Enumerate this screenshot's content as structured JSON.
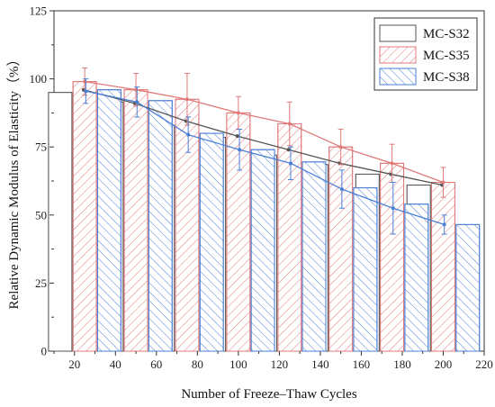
{
  "chart_data": {
    "type": "bar",
    "xlabel": "Number of Freeze–Thaw Cycles",
    "ylabel": "Relative Dynamic Modulus of Elasticity（%）",
    "x": [
      25,
      50,
      75,
      100,
      125,
      150,
      175,
      200
    ],
    "xlim": [
      10,
      220
    ],
    "ylim": [
      0,
      125
    ],
    "xticks": [
      "20",
      "40",
      "60",
      "80",
      "100",
      "120",
      "140",
      "160",
      "180",
      "200",
      "220"
    ],
    "yticks": [
      "0",
      "25",
      "50",
      "75",
      "100",
      "125"
    ],
    "legend_position": "top-right",
    "grid": false,
    "series": [
      {
        "name": "MC-S32",
        "color": "#555555",
        "pattern": "none",
        "values": [
          95,
          91.5,
          83,
          78.5,
          72,
          68.5,
          65,
          61
        ],
        "error": [
          0,
          0,
          0,
          0,
          0,
          0,
          0,
          0
        ],
        "line_values": [
          96,
          91,
          84.5,
          79,
          74,
          69,
          65,
          61
        ]
      },
      {
        "name": "MC-S35",
        "color": "#e07a7a",
        "pattern": "hatch-right",
        "values": [
          99,
          96,
          92.5,
          87.5,
          83.5,
          75,
          69,
          62
        ],
        "error": [
          5,
          6,
          9.5,
          6,
          8,
          6.5,
          7,
          5.5
        ],
        "line_values": [
          99,
          96,
          92.5,
          87.5,
          83.5,
          75,
          69,
          62
        ]
      },
      {
        "name": "MC-S38",
        "color": "#4a7fd6",
        "pattern": "hatch-left",
        "values": [
          96,
          92,
          80,
          74,
          69.5,
          60,
          54,
          46.5
        ],
        "error": [
          4.5,
          5.5,
          6.5,
          7.5,
          6,
          7,
          9.5,
          3.5
        ],
        "line_values": [
          95.5,
          91.5,
          79.5,
          74,
          69,
          59.5,
          52.5,
          46.5
        ]
      }
    ]
  }
}
